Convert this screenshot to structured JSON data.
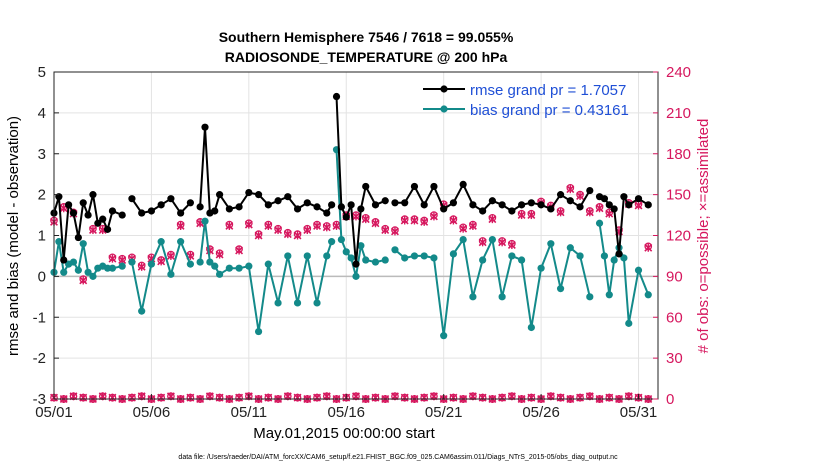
{
  "chart_data": {
    "type": "line",
    "title": "Southern Hemisphere 7546 / 7618 = 99.055%",
    "subtitle": "RADIOSONDE_TEMPERATURE @ 200 hPa",
    "xlabel": "May.01,2015 00:00:00 start",
    "ylabel_left": "rmse and bias (model - observation)",
    "ylabel_right": "# of obs: o=possible; ×=assimilated",
    "footnote": "data file: /Users/raeder/DAI/ATM_forcXX/CAM6_setup/f.e21.FHIST_BGC.f09_025.CAM6assim.011/Diags_NTrS_2015-05/obs_diag_output.nc",
    "xlim": [
      1,
      32
    ],
    "ylim_left": [
      -3,
      5
    ],
    "ylim_right": [
      0,
      240
    ],
    "xticks": [
      1,
      6,
      11,
      16,
      21,
      26,
      31
    ],
    "xtick_labels": [
      "05/01",
      "05/06",
      "05/11",
      "05/16",
      "05/21",
      "05/26",
      "05/31"
    ],
    "yticks_left": [
      -3,
      -2,
      -1,
      0,
      1,
      2,
      3,
      4,
      5
    ],
    "ytick_labels_left": [
      "-3",
      "-2",
      "-1",
      "0",
      "1",
      "2",
      "3",
      "4",
      "5"
    ],
    "yticks_right": [
      0,
      30,
      60,
      90,
      120,
      150,
      180,
      210,
      240
    ],
    "ytick_labels_right": [
      "0",
      "30",
      "60",
      "90",
      "120",
      "150",
      "180",
      "210",
      "240"
    ],
    "grid": true,
    "legend_position": "top-right",
    "colors": {
      "rmse": "#000000",
      "bias": "#138a8a",
      "obs": "#d6175e",
      "zero_line": "#bbbbbb",
      "legend_text": "#1f4fd6"
    },
    "series": [
      {
        "name": "rmse grand pr = 1.7057",
        "x": [
          1,
          1.25,
          1.5,
          1.75,
          2,
          2.25,
          2.5,
          2.75,
          3,
          3.25,
          3.5,
          3.75,
          4,
          4.5,
          5,
          5.5,
          6,
          6.5,
          7,
          7.5,
          8,
          8.5,
          8.75,
          9,
          9.25,
          9.5,
          10,
          10.5,
          11,
          11.5,
          12,
          12.5,
          13,
          13.5,
          14,
          14.5,
          15,
          15.25,
          15.5,
          15.75,
          16,
          16.25,
          16.5,
          16.75,
          17,
          17.5,
          18,
          18.5,
          19,
          19.5,
          20,
          20.5,
          21,
          21.5,
          22,
          22.5,
          23,
          23.5,
          24,
          24.5,
          25,
          25.5,
          26,
          26.5,
          27,
          27.5,
          28,
          28.5,
          29,
          29.25,
          29.5,
          29.75,
          30,
          30.25,
          30.5,
          31,
          31.5
        ],
        "values": [
          1.55,
          1.95,
          0.4,
          1.75,
          1.55,
          0.95,
          1.8,
          1.5,
          2.0,
          1.3,
          1.4,
          1.15,
          1.6,
          1.5,
          1.9,
          1.55,
          1.6,
          1.75,
          1.9,
          1.55,
          1.8,
          1.7,
          3.65,
          1.55,
          1.6,
          2.0,
          1.65,
          1.7,
          2.05,
          2.0,
          1.75,
          1.85,
          1.95,
          1.65,
          1.8,
          1.7,
          1.55,
          1.75,
          4.4,
          1.7,
          1.45,
          1.75,
          0.3,
          1.65,
          2.2,
          1.75,
          1.85,
          1.8,
          1.8,
          2.2,
          1.75,
          2.2,
          1.65,
          1.8,
          2.25,
          1.75,
          1.6,
          1.85,
          1.75,
          1.6,
          1.75,
          1.8,
          1.75,
          1.65,
          2.0,
          1.85,
          1.7,
          2.1,
          1.95,
          1.9,
          1.75,
          1.65,
          0.55,
          1.95,
          1.75,
          1.9,
          1.75
        ],
        "line_breaks": [
          14,
          21,
          38,
          47,
          68
        ]
      },
      {
        "name": "bias grand pr = 0.43161",
        "x": [
          1,
          1.25,
          1.5,
          1.75,
          2,
          2.25,
          2.5,
          2.75,
          3,
          3.25,
          3.5,
          3.75,
          4,
          4.5,
          5,
          5.5,
          6,
          6.5,
          7,
          7.5,
          8,
          8.5,
          8.75,
          9,
          9.25,
          9.5,
          10,
          10.5,
          11,
          11.5,
          12,
          12.5,
          13,
          13.5,
          14,
          14.5,
          15,
          15.25,
          15.5,
          15.75,
          16,
          16.25,
          16.5,
          16.75,
          17,
          17.5,
          18,
          18.5,
          19,
          19.5,
          20,
          20.5,
          21,
          21.5,
          22,
          22.5,
          23,
          23.5,
          24,
          24.5,
          25,
          25.5,
          26,
          26.5,
          27,
          27.5,
          28,
          28.5,
          29,
          29.25,
          29.5,
          29.75,
          30,
          30.25,
          30.5,
          31,
          31.5
        ],
        "values": [
          0.1,
          0.85,
          0.1,
          0.3,
          0.35,
          0.15,
          0.8,
          0.1,
          0.0,
          0.2,
          0.25,
          0.2,
          0.2,
          0.25,
          0.35,
          -0.85,
          0.3,
          0.85,
          0.05,
          0.85,
          0.3,
          0.35,
          1.35,
          0.35,
          0.25,
          0.05,
          0.2,
          0.2,
          0.25,
          -1.35,
          0.3,
          -0.65,
          0.5,
          -0.65,
          0.5,
          -0.65,
          0.5,
          0.85,
          3.1,
          0.9,
          0.6,
          0.45,
          0.0,
          0.75,
          0.4,
          0.35,
          0.4,
          0.65,
          0.45,
          0.5,
          0.5,
          0.45,
          -1.45,
          0.55,
          0.9,
          -0.5,
          0.4,
          0.9,
          -0.5,
          0.5,
          0.4,
          -1.25,
          0.2,
          0.8,
          -0.3,
          0.7,
          0.5,
          -0.5,
          1.3,
          0.5,
          -0.45,
          0.4,
          0.7,
          0.45,
          -1.15,
          0.15,
          -0.45
        ],
        "line_breaks": [
          14,
          21,
          38,
          47,
          68
        ]
      },
      {
        "name": "obs possible",
        "marker": "circle",
        "x": [
          1,
          1.5,
          2,
          2.5,
          3,
          3.5,
          4,
          4.5,
          5,
          5.5,
          6,
          6.5,
          7,
          7.5,
          8,
          8.5,
          9,
          9.5,
          10,
          10.5,
          11,
          11.5,
          12,
          12.5,
          13,
          13.5,
          14,
          14.5,
          15,
          15.5,
          16,
          16.5,
          17,
          17.5,
          18,
          18.5,
          19,
          19.5,
          20,
          20.5,
          21,
          21.5,
          22,
          22.5,
          23,
          23.5,
          24,
          24.5,
          25,
          25.5,
          26,
          26.5,
          27,
          27.5,
          28,
          28.5,
          29,
          29.5,
          30,
          30.5,
          31,
          31.5
        ],
        "values": [
          131,
          141,
          137,
          88,
          125,
          125,
          104,
          103,
          104,
          98,
          104,
          102,
          106,
          128,
          106,
          130,
          110,
          107,
          128,
          110,
          129,
          121,
          128,
          125,
          122,
          121,
          125,
          128,
          127,
          128,
          135,
          135,
          133,
          130,
          125,
          124,
          132,
          132,
          131,
          135,
          143,
          132,
          126,
          128,
          116,
          133,
          116,
          114,
          136,
          136,
          145,
          142,
          138,
          155,
          150,
          138,
          141,
          137,
          124,
          144,
          143,
          112
        ]
      },
      {
        "name": "obs assimilated",
        "marker": "x",
        "x": [
          1,
          1.5,
          2,
          2.5,
          3,
          3.5,
          4,
          4.5,
          5,
          5.5,
          6,
          6.5,
          7,
          7.5,
          8,
          8.5,
          9,
          9.5,
          10,
          10.5,
          11,
          11.5,
          12,
          12.5,
          13,
          13.5,
          14,
          14.5,
          15,
          15.5,
          16,
          16.5,
          17,
          17.5,
          18,
          18.5,
          19,
          19.5,
          20,
          20.5,
          21,
          21.5,
          22,
          22.5,
          23,
          23.5,
          24,
          24.5,
          25,
          25.5,
          26,
          26.5,
          27,
          27.5,
          28,
          28.5,
          29,
          29.5,
          30,
          30.5,
          31,
          31.5
        ],
        "values": [
          130,
          140,
          136,
          87,
          124,
          124,
          103,
          102,
          103,
          97,
          103,
          101,
          105,
          127,
          105,
          129,
          109,
          106,
          127,
          109,
          128,
          120,
          127,
          124,
          121,
          120,
          124,
          127,
          126,
          127,
          134,
          134,
          132,
          129,
          124,
          123,
          131,
          131,
          130,
          134,
          142,
          131,
          125,
          127,
          115,
          132,
          115,
          113,
          135,
          135,
          144,
          141,
          137,
          154,
          149,
          137,
          140,
          136,
          123,
          143,
          142,
          111
        ]
      },
      {
        "name": "obs baseline possible",
        "marker": "circle",
        "x": [
          1,
          1.5,
          2,
          2.5,
          3,
          3.5,
          4,
          4.5,
          5,
          5.5,
          6,
          6.5,
          7,
          7.5,
          8,
          8.5,
          9,
          9.5,
          10,
          10.5,
          11,
          11.5,
          12,
          12.5,
          13,
          13.5,
          14,
          14.5,
          15,
          15.5,
          16,
          16.5,
          17,
          17.5,
          18,
          18.5,
          19,
          19.5,
          20,
          20.5,
          21,
          21.5,
          22,
          22.5,
          23,
          23.5,
          24,
          24.5,
          25,
          25.5,
          26,
          26.5,
          27,
          27.5,
          28,
          28.5,
          29,
          29.5,
          30,
          30.5,
          31,
          31.5
        ],
        "values": [
          1,
          0,
          2,
          1,
          0,
          2,
          1,
          0,
          1,
          2,
          0,
          1,
          2,
          0,
          1,
          0,
          2,
          1,
          0,
          1,
          2,
          0,
          1,
          0,
          2,
          1,
          0,
          1,
          2,
          0,
          1,
          2,
          0,
          1,
          0,
          2,
          1,
          0,
          1,
          2,
          0,
          1,
          0,
          2,
          1,
          0,
          1,
          2,
          0,
          1,
          0,
          2,
          1,
          0,
          1,
          2,
          0,
          1,
          0,
          2,
          1,
          0
        ]
      }
    ]
  }
}
